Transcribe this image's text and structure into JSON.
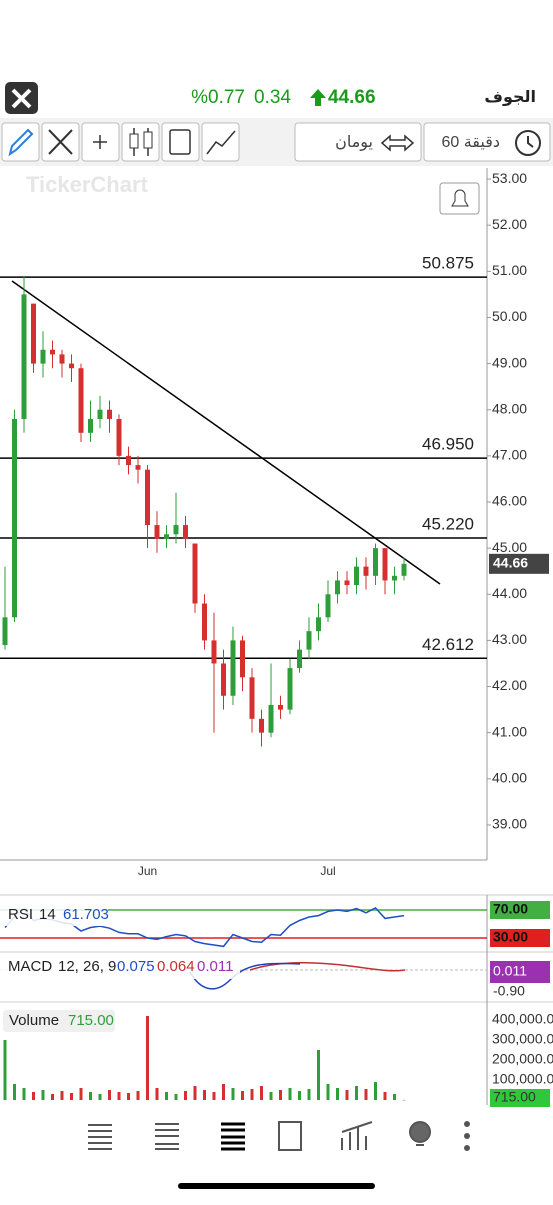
{
  "header": {
    "city": "الجوف",
    "price": 44.66,
    "change": 0.34,
    "change_pct": "%0.77"
  },
  "toolbar": {
    "range": "يومان",
    "interval": "60 دقيقة"
  },
  "watermark": "TickerChart",
  "chart_data": {
    "type": "candlestick",
    "categories": [
      null,
      null,
      null,
      null,
      null,
      null,
      null,
      null,
      null,
      null,
      null,
      null,
      null,
      null,
      null,
      "Jun",
      null,
      null,
      null,
      null,
      null,
      null,
      null,
      null,
      null,
      null,
      null,
      null,
      null,
      null,
      null,
      null,
      null,
      null,
      "Jul",
      null,
      null,
      null,
      null,
      null,
      null,
      null,
      null
    ],
    "open": [
      42.9,
      43.5,
      47.8,
      50.3,
      49.0,
      49.3,
      49.2,
      49.0,
      48.9,
      47.5,
      47.8,
      48.0,
      47.8,
      47.0,
      46.8,
      46.7,
      45.5,
      45.2,
      45.3,
      45.5,
      45.1,
      43.8,
      43.0,
      42.5,
      41.8,
      43.0,
      42.2,
      41.3,
      41.0,
      41.6,
      41.5,
      42.4,
      42.8,
      43.2,
      43.5,
      44.0,
      44.3,
      44.2,
      44.6,
      44.4,
      45.0,
      44.3,
      44.4
    ],
    "high": [
      44.6,
      48.0,
      50.9,
      50.3,
      49.7,
      49.5,
      49.3,
      49.2,
      49.0,
      48.2,
      48.3,
      48.2,
      47.9,
      47.2,
      47.0,
      46.8,
      45.8,
      45.5,
      46.2,
      45.7,
      45.1,
      44.0,
      43.6,
      42.8,
      43.3,
      43.1,
      42.4,
      41.5,
      42.5,
      41.8,
      42.6,
      43.0,
      43.5,
      43.8,
      44.3,
      44.5,
      44.5,
      44.8,
      44.8,
      45.1,
      45.0,
      44.6,
      44.8
    ],
    "low": [
      42.8,
      43.4,
      47.5,
      48.8,
      48.7,
      48.9,
      48.7,
      48.6,
      47.3,
      47.3,
      47.6,
      47.5,
      46.8,
      46.6,
      46.4,
      45.0,
      44.9,
      45.0,
      45.1,
      45.0,
      43.6,
      42.8,
      41.0,
      41.5,
      41.6,
      41.9,
      41.0,
      40.7,
      40.9,
      41.3,
      41.4,
      42.3,
      42.6,
      43.0,
      43.4,
      43.8,
      44.0,
      44.0,
      44.1,
      44.2,
      44.0,
      44.0,
      44.3
    ],
    "close": [
      43.5,
      47.8,
      50.5,
      49.0,
      49.3,
      49.2,
      49.0,
      48.9,
      47.5,
      47.8,
      48.0,
      47.8,
      47.0,
      46.8,
      46.7,
      45.5,
      45.2,
      45.3,
      45.5,
      45.2,
      43.8,
      43.0,
      42.5,
      41.8,
      43.0,
      42.2,
      41.3,
      41.0,
      41.6,
      41.5,
      42.4,
      42.8,
      43.2,
      43.5,
      44.0,
      44.3,
      44.2,
      44.6,
      44.4,
      45.0,
      44.3,
      44.4,
      44.66
    ],
    "up_color": "#2e9e3a",
    "down_color": "#d62f2f",
    "ylim": [
      38.24,
      53.24
    ],
    "yticks": [
      {
        "value": 39,
        "label": "39.00"
      },
      {
        "value": 40,
        "label": "40.00"
      },
      {
        "value": 41,
        "label": "41.00"
      },
      {
        "value": 42,
        "label": "42.00"
      },
      {
        "value": 43,
        "label": "43.00"
      },
      {
        "value": 44,
        "label": "44.00"
      },
      {
        "value": 45,
        "label": "45.00"
      },
      {
        "value": 46,
        "label": "46.00"
      },
      {
        "value": 47,
        "label": "47.00"
      },
      {
        "value": 48,
        "label": "48.00"
      },
      {
        "value": 49,
        "label": "49.00"
      },
      {
        "value": 50,
        "label": "50.00"
      },
      {
        "value": 51,
        "label": "51.00"
      },
      {
        "value": 52,
        "label": "52.00"
      },
      {
        "value": 53,
        "label": "53.00"
      }
    ],
    "levels": [
      50.875,
      {
        "value": 46.95,
        "label": "46.950"
      },
      {
        "value": 45.22,
        "label": "45.220"
      },
      42.612
    ],
    "rsi": {
      "name": "RSI",
      "period": "14",
      "value": "61.703",
      "color": "#1f4fc4",
      "values": [
        45,
        60,
        72,
        55,
        58,
        56,
        52,
        50,
        40,
        45,
        47,
        44,
        38,
        36,
        36,
        30,
        28,
        32,
        35,
        33,
        25,
        22,
        20,
        18,
        35,
        30,
        25,
        24,
        35,
        34,
        48,
        55,
        60,
        62,
        68,
        70,
        68,
        72,
        66,
        73,
        58,
        60,
        62
      ],
      "yticks": [
        {
          "value": 70,
          "label": "70.00"
        },
        {
          "value": 30,
          "label": "30.00"
        }
      ]
    },
    "macd": {
      "name": "MACD",
      "params": "12, 26, 9",
      "macd": "0.075",
      "signal": "0.064",
      "hist": "0.011",
      "axis_labels": [
        "0.011",
        "-0.90"
      ]
    },
    "volume": {
      "name": "Volume",
      "last_label": "715.00",
      "values": [
        300000,
        80000,
        60000,
        40000,
        50000,
        30000,
        45000,
        35000,
        60000,
        40000,
        30000,
        50000,
        40000,
        35000,
        45000,
        420000,
        60000,
        40000,
        30000,
        45000,
        70000,
        50000,
        40000,
        80000,
        60000,
        45000,
        55000,
        70000,
        40000,
        50000,
        60000,
        45000,
        55000,
        250000,
        80000,
        60000,
        50000,
        70000,
        55000,
        90000,
        40000,
        30000,
        715
      ],
      "yticks": [
        {
          "value": 400000,
          "label": "400,000.0"
        },
        {
          "value": 300000,
          "label": "300,000.0"
        },
        {
          "value": 200000,
          "label": "200,000.0"
        },
        {
          "value": 100000,
          "label": "100,000.0"
        }
      ]
    }
  }
}
